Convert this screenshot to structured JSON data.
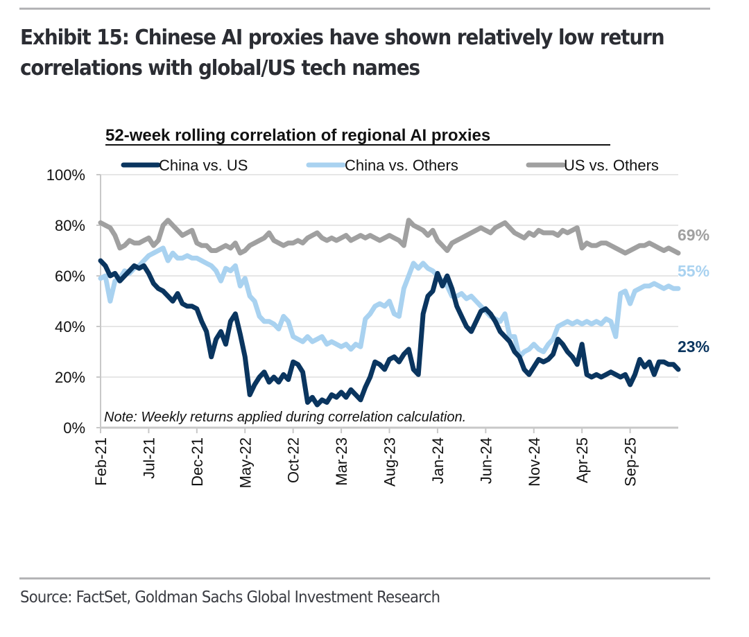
{
  "header": {
    "title": "Exhibit 15: Chinese AI proxies have shown relatively low return correlations with global/US tech names"
  },
  "footer": {
    "source": "Source: FactSet, Goldman Sachs Global Investment Research"
  },
  "colors": {
    "china_vs_us": "#0a355f",
    "china_vs_others": "#a9d2f0",
    "us_vs_others": "#a0a0a0",
    "gridline": "#e6e6e6",
    "axis": "#c8c8c8",
    "rule": "#b4b4b6"
  },
  "chart_data": {
    "type": "line",
    "title": "52-week rolling correlation of regional AI proxies",
    "note": "Note: Weekly returns applied during correlation calculation.",
    "xlabel": "",
    "ylabel": "",
    "ylim": [
      0,
      100
    ],
    "y_ticks": [
      "0%",
      "20%",
      "40%",
      "60%",
      "80%",
      "100%"
    ],
    "y_tick_values": [
      0,
      20,
      40,
      60,
      80,
      100
    ],
    "x_range_months": [
      0,
      60
    ],
    "x_ticks": [
      "Feb-21",
      "Jul-21",
      "Dec-21",
      "May-22",
      "Oct-22",
      "Mar-23",
      "Aug-23",
      "Jan-24",
      "Jun-24",
      "Nov-24",
      "Apr-25",
      "Sep-25"
    ],
    "x_tick_months": [
      0,
      5,
      10,
      15,
      20,
      25,
      30,
      35,
      40,
      45,
      50,
      55
    ],
    "grid": true,
    "legend_position": "top",
    "series": [
      {
        "name": "China vs. US",
        "end_label": "23%",
        "x_months": [
          0,
          0.5,
          1,
          1.5,
          2,
          2.5,
          3,
          3.5,
          4,
          4.5,
          5,
          5.5,
          6,
          6.5,
          7,
          7.5,
          8,
          8.5,
          9,
          9.5,
          10,
          10.5,
          11,
          11.5,
          12,
          12.5,
          13,
          13.5,
          14,
          14.5,
          15,
          15.5,
          16,
          16.5,
          17,
          17.5,
          18,
          18.5,
          19,
          19.5,
          20,
          20.5,
          21,
          21.5,
          22,
          22.5,
          23,
          23.5,
          24,
          24.5,
          25,
          25.5,
          26,
          26.5,
          27,
          27.5,
          28,
          28.5,
          29,
          29.5,
          30,
          30.5,
          31,
          31.5,
          32,
          32.5,
          33,
          33.5,
          34,
          34.5,
          35,
          35.5,
          36,
          36.5,
          37,
          37.5,
          38,
          38.5,
          39,
          39.5,
          40,
          40.5,
          41,
          41.5,
          42,
          42.5,
          43,
          43.5,
          44,
          44.5,
          45,
          45.5,
          46,
          46.5,
          47,
          47.5,
          48,
          48.5,
          49,
          49.5,
          50,
          50.5,
          51,
          51.5,
          52,
          52.5,
          53,
          53.5,
          54,
          54.5,
          55,
          55.5,
          56,
          56.5,
          57,
          57.5,
          58,
          58.5,
          59,
          59.5,
          60
        ],
        "values": [
          66,
          64,
          60,
          61,
          58,
          60,
          62,
          64,
          63,
          64,
          61,
          57,
          55,
          54,
          52,
          50,
          53,
          49,
          48,
          48,
          47,
          42,
          38,
          28,
          35,
          38,
          33,
          42,
          45,
          37,
          28,
          13,
          17,
          20,
          22,
          18,
          20,
          18,
          21,
          19,
          26,
          25,
          22,
          10,
          12,
          9,
          11,
          10,
          13,
          12,
          14,
          12,
          15,
          13,
          11,
          16,
          20,
          26,
          25,
          23,
          27,
          28,
          26,
          29,
          31,
          23,
          21,
          45,
          52,
          54,
          61,
          56,
          60,
          55,
          48,
          44,
          40,
          38,
          42,
          46,
          47,
          45,
          42,
          38,
          36,
          34,
          30,
          28,
          23,
          21,
          24,
          27,
          26,
          27,
          29,
          35,
          33,
          30,
          28,
          25,
          33,
          21,
          20,
          21,
          20,
          21,
          22,
          21,
          20,
          21,
          17,
          21,
          27,
          24,
          26,
          21,
          26,
          26,
          25,
          25,
          23
        ]
      },
      {
        "name": "China vs. Others",
        "end_label": "55%",
        "x_months": [
          0,
          0.5,
          1,
          1.5,
          2,
          2.5,
          3,
          3.5,
          4,
          4.5,
          5,
          5.5,
          6,
          6.5,
          7,
          7.5,
          8,
          8.5,
          9,
          9.5,
          10,
          10.5,
          11,
          11.5,
          12,
          12.5,
          13,
          13.5,
          14,
          14.5,
          15,
          15.5,
          16,
          16.5,
          17,
          17.5,
          18,
          18.5,
          19,
          19.5,
          20,
          20.5,
          21,
          21.5,
          22,
          22.5,
          23,
          23.5,
          24,
          24.5,
          25,
          25.5,
          26,
          26.5,
          27,
          27.5,
          28,
          28.5,
          29,
          29.5,
          30,
          30.5,
          31,
          31.5,
          32,
          32.5,
          33,
          33.5,
          34,
          34.5,
          35,
          35.5,
          36,
          36.5,
          37,
          37.5,
          38,
          38.5,
          39,
          39.5,
          40,
          40.5,
          41,
          41.5,
          42,
          42.5,
          43,
          43.5,
          44,
          44.5,
          45,
          45.5,
          46,
          46.5,
          47,
          47.5,
          48,
          48.5,
          49,
          49.5,
          50,
          50.5,
          51,
          51.5,
          52,
          52.5,
          53,
          53.5,
          54,
          54.5,
          55,
          55.5,
          56,
          56.5,
          57,
          57.5,
          58,
          58.5,
          59,
          59.5,
          60
        ],
        "values": [
          59,
          60,
          50,
          58,
          59,
          62,
          61,
          63,
          64,
          66,
          68,
          69,
          70,
          71,
          66,
          69,
          67,
          67,
          68,
          67,
          67,
          66,
          65,
          64,
          62,
          58,
          63,
          62,
          64,
          56,
          59,
          52,
          50,
          44,
          42,
          42,
          41,
          39,
          44,
          42,
          36,
          35,
          34,
          36,
          34,
          35,
          36,
          33,
          34,
          33,
          32,
          33,
          31,
          33,
          32,
          43,
          45,
          48,
          49,
          48,
          50,
          45,
          44,
          55,
          60,
          65,
          63,
          65,
          63,
          62,
          60,
          58,
          56,
          52,
          52,
          53,
          51,
          52,
          50,
          48,
          46,
          44,
          43,
          42,
          45,
          36,
          36,
          28,
          30,
          31,
          33,
          31,
          30,
          33,
          35,
          40,
          41,
          42,
          41,
          42,
          41,
          42,
          41,
          42,
          41,
          43,
          42,
          36,
          53,
          54,
          49,
          54,
          55,
          56,
          56,
          57,
          56,
          55,
          56,
          55,
          55
        ]
      },
      {
        "name": "US vs. Others",
        "end_label": "69%",
        "x_months": [
          0,
          0.5,
          1,
          1.5,
          2,
          2.5,
          3,
          3.5,
          4,
          4.5,
          5,
          5.5,
          6,
          6.5,
          7,
          7.5,
          8,
          8.5,
          9,
          9.5,
          10,
          10.5,
          11,
          11.5,
          12,
          12.5,
          13,
          13.5,
          14,
          14.5,
          15,
          15.5,
          16,
          16.5,
          17,
          17.5,
          18,
          18.5,
          19,
          19.5,
          20,
          20.5,
          21,
          21.5,
          22,
          22.5,
          23,
          23.5,
          24,
          24.5,
          25,
          25.5,
          26,
          26.5,
          27,
          27.5,
          28,
          28.5,
          29,
          29.5,
          30,
          30.5,
          31,
          31.5,
          32,
          32.5,
          33,
          33.5,
          34,
          34.5,
          35,
          35.5,
          36,
          36.5,
          37,
          37.5,
          38,
          38.5,
          39,
          39.5,
          40,
          40.5,
          41,
          41.5,
          42,
          42.5,
          43,
          43.5,
          44,
          44.5,
          45,
          45.5,
          46,
          46.5,
          47,
          47.5,
          48,
          48.5,
          49,
          49.5,
          50,
          50.5,
          51,
          51.5,
          52,
          52.5,
          53,
          53.5,
          54,
          54.5,
          55,
          55.5,
          56,
          56.5,
          57,
          57.5,
          58,
          58.5,
          59,
          59.5,
          60
        ],
        "values": [
          81,
          80,
          79,
          76,
          71,
          72,
          74,
          73,
          73,
          74,
          75,
          72,
          74,
          80,
          82,
          80,
          78,
          76,
          77,
          78,
          73,
          72,
          72,
          70,
          70,
          71,
          72,
          71,
          73,
          69,
          70,
          72,
          73,
          74,
          75,
          77,
          74,
          73,
          72,
          73,
          73,
          74,
          73,
          75,
          76,
          77,
          75,
          74,
          75,
          74,
          75,
          76,
          74,
          75,
          76,
          75,
          76,
          75,
          74,
          75,
          76,
          75,
          74,
          72,
          82,
          80,
          79,
          78,
          76,
          78,
          74,
          72,
          70,
          73,
          74,
          75,
          76,
          77,
          78,
          79,
          78,
          77,
          79,
          80,
          81,
          79,
          77,
          76,
          75,
          77,
          76,
          78,
          77,
          77,
          77,
          76,
          78,
          77,
          78,
          79,
          71,
          73,
          72,
          72,
          73,
          73,
          72,
          71,
          70,
          69,
          70,
          71,
          72,
          72,
          73,
          72,
          71,
          70,
          71,
          70,
          69
        ]
      }
    ]
  }
}
